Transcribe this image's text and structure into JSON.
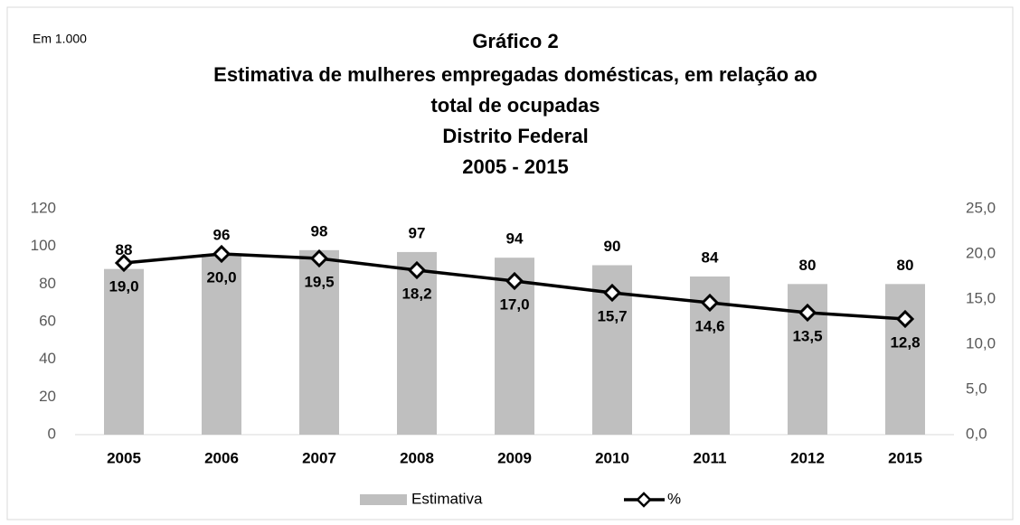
{
  "chart_data": {
    "type": "bar-line",
    "unit_label": "Em 1.000",
    "title": [
      "Gráfico 2",
      "Estimativa de mulheres empregadas domésticas, em relação ao",
      "total de ocupadas",
      "Distrito Federal",
      "2005 - 2015"
    ],
    "categories": [
      "2005",
      "2006",
      "2007",
      "2008",
      "2009",
      "2010",
      "2011",
      "2012",
      "2015"
    ],
    "series": [
      {
        "name": "Estimativa",
        "color": "#bfbfbf",
        "type": "bar",
        "values": [
          88,
          96,
          98,
          97,
          94,
          90,
          84,
          80,
          80
        ]
      },
      {
        "name": "%",
        "color": "#000000",
        "type": "line",
        "axis": "y2",
        "values": [
          19.0,
          20.0,
          19.5,
          18.2,
          17.0,
          15.7,
          14.6,
          13.5,
          12.8
        ],
        "value_labels": [
          "19,0",
          "20,0",
          "19,5",
          "18,2",
          "17,0",
          "15,7",
          "14,6",
          "13,5",
          "12,8"
        ]
      }
    ],
    "ylim": [
      0,
      120
    ],
    "yticks": [
      0,
      20,
      40,
      60,
      80,
      100,
      120
    ],
    "y2lim": [
      0,
      25
    ],
    "y2ticks": [
      {
        "value": 0,
        "label": "0,0"
      },
      {
        "value": 5,
        "label": "5,0"
      },
      {
        "value": 10,
        "label": "10,0"
      },
      {
        "value": 15,
        "label": "15,0"
      },
      {
        "value": 20,
        "label": "20,0"
      },
      {
        "value": 25,
        "label": "25,0"
      }
    ],
    "grid": false,
    "legend": "bottom"
  }
}
